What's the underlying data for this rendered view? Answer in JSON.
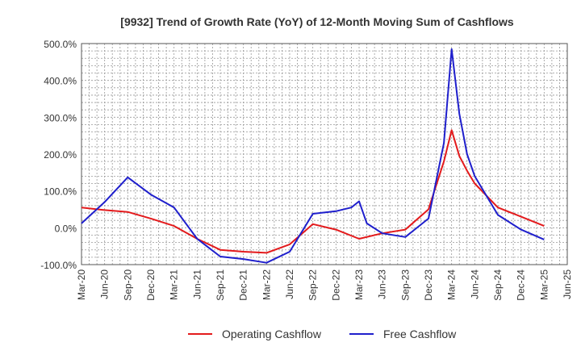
{
  "chart_data": {
    "type": "line",
    "title": "[9932]  Trend of Growth Rate (YoY) of 12-Month Moving Sum of Cashflows",
    "xlabel": "",
    "ylabel": "",
    "ylim": [
      -100,
      500
    ],
    "yticks": [
      -100,
      0,
      100,
      200,
      300,
      400,
      500
    ],
    "ytick_labels": [
      "-100.0%",
      "0.0%",
      "100.0%",
      "200.0%",
      "300.0%",
      "400.0%",
      "500.0%"
    ],
    "x_tick_labels": [
      "Mar-20",
      "Jun-20",
      "Sep-20",
      "Dec-20",
      "Mar-21",
      "Jun-21",
      "Sep-21",
      "Dec-21",
      "Mar-22",
      "Jun-22",
      "Sep-22",
      "Dec-22",
      "Mar-23",
      "Jun-23",
      "Sep-23",
      "Dec-23",
      "Mar-24",
      "Jun-24",
      "Sep-24",
      "Dec-24",
      "Mar-25",
      "Jun-25"
    ],
    "months": [
      "Mar-20",
      "Apr-20",
      "May-20",
      "Jun-20",
      "Jul-20",
      "Aug-20",
      "Sep-20",
      "Oct-20",
      "Nov-20",
      "Dec-20",
      "Jan-21",
      "Feb-21",
      "Mar-21",
      "Apr-21",
      "May-21",
      "Jun-21",
      "Jul-21",
      "Aug-21",
      "Sep-21",
      "Oct-21",
      "Nov-21",
      "Dec-21",
      "Jan-22",
      "Feb-22",
      "Mar-22",
      "Apr-22",
      "May-22",
      "Jun-22",
      "Jul-22",
      "Aug-22",
      "Sep-22",
      "Oct-22",
      "Nov-22",
      "Dec-22",
      "Jan-23",
      "Feb-23",
      "Mar-23",
      "Apr-23",
      "May-23",
      "Jun-23",
      "Jul-23",
      "Aug-23",
      "Sep-23",
      "Oct-23",
      "Nov-23",
      "Dec-23",
      "Jan-24",
      "Feb-24",
      "Mar-24",
      "Apr-24",
      "May-24",
      "Jun-24",
      "Jul-24",
      "Aug-24",
      "Sep-24",
      "Oct-24",
      "Nov-24",
      "Dec-24",
      "Jan-25",
      "Feb-25",
      "Mar-25",
      "Apr-25",
      "May-25",
      "Jun-25"
    ],
    "grid": true,
    "legend_position": "bottom-center",
    "series": [
      {
        "name": "Operating Cashflow",
        "color": "#e31a1c",
        "values": [
          55,
          null,
          null,
          48,
          null,
          null,
          43,
          null,
          null,
          25,
          null,
          null,
          5,
          null,
          null,
          -30,
          null,
          null,
          -60,
          null,
          null,
          -65,
          null,
          null,
          -68,
          null,
          null,
          -45,
          null,
          null,
          10,
          null,
          null,
          -5,
          null,
          null,
          -30,
          null,
          null,
          -15,
          null,
          null,
          -5,
          null,
          null,
          50,
          null,
          180,
          265,
          195,
          155,
          120,
          null,
          null,
          55,
          null,
          null,
          30,
          null,
          null,
          5,
          null,
          null,
          null
        ]
      },
      {
        "name": "Free Cashflow",
        "color": "#1f1fcc",
        "values": [
          12,
          null,
          null,
          70,
          null,
          null,
          137,
          null,
          null,
          90,
          null,
          null,
          55,
          null,
          null,
          -30,
          null,
          null,
          -78,
          null,
          null,
          -85,
          null,
          null,
          -95,
          null,
          null,
          -65,
          null,
          null,
          38,
          null,
          null,
          45,
          null,
          55,
          72,
          12,
          null,
          -15,
          null,
          null,
          -25,
          null,
          null,
          25,
          null,
          230,
          485,
          310,
          200,
          140,
          null,
          null,
          35,
          null,
          null,
          -5,
          null,
          null,
          -32,
          null,
          null,
          null
        ]
      }
    ]
  },
  "colors": {
    "axis": "#555555",
    "grid": "#999999",
    "text": "#333333",
    "operating": "#e31a1c",
    "free": "#1f1fcc"
  }
}
